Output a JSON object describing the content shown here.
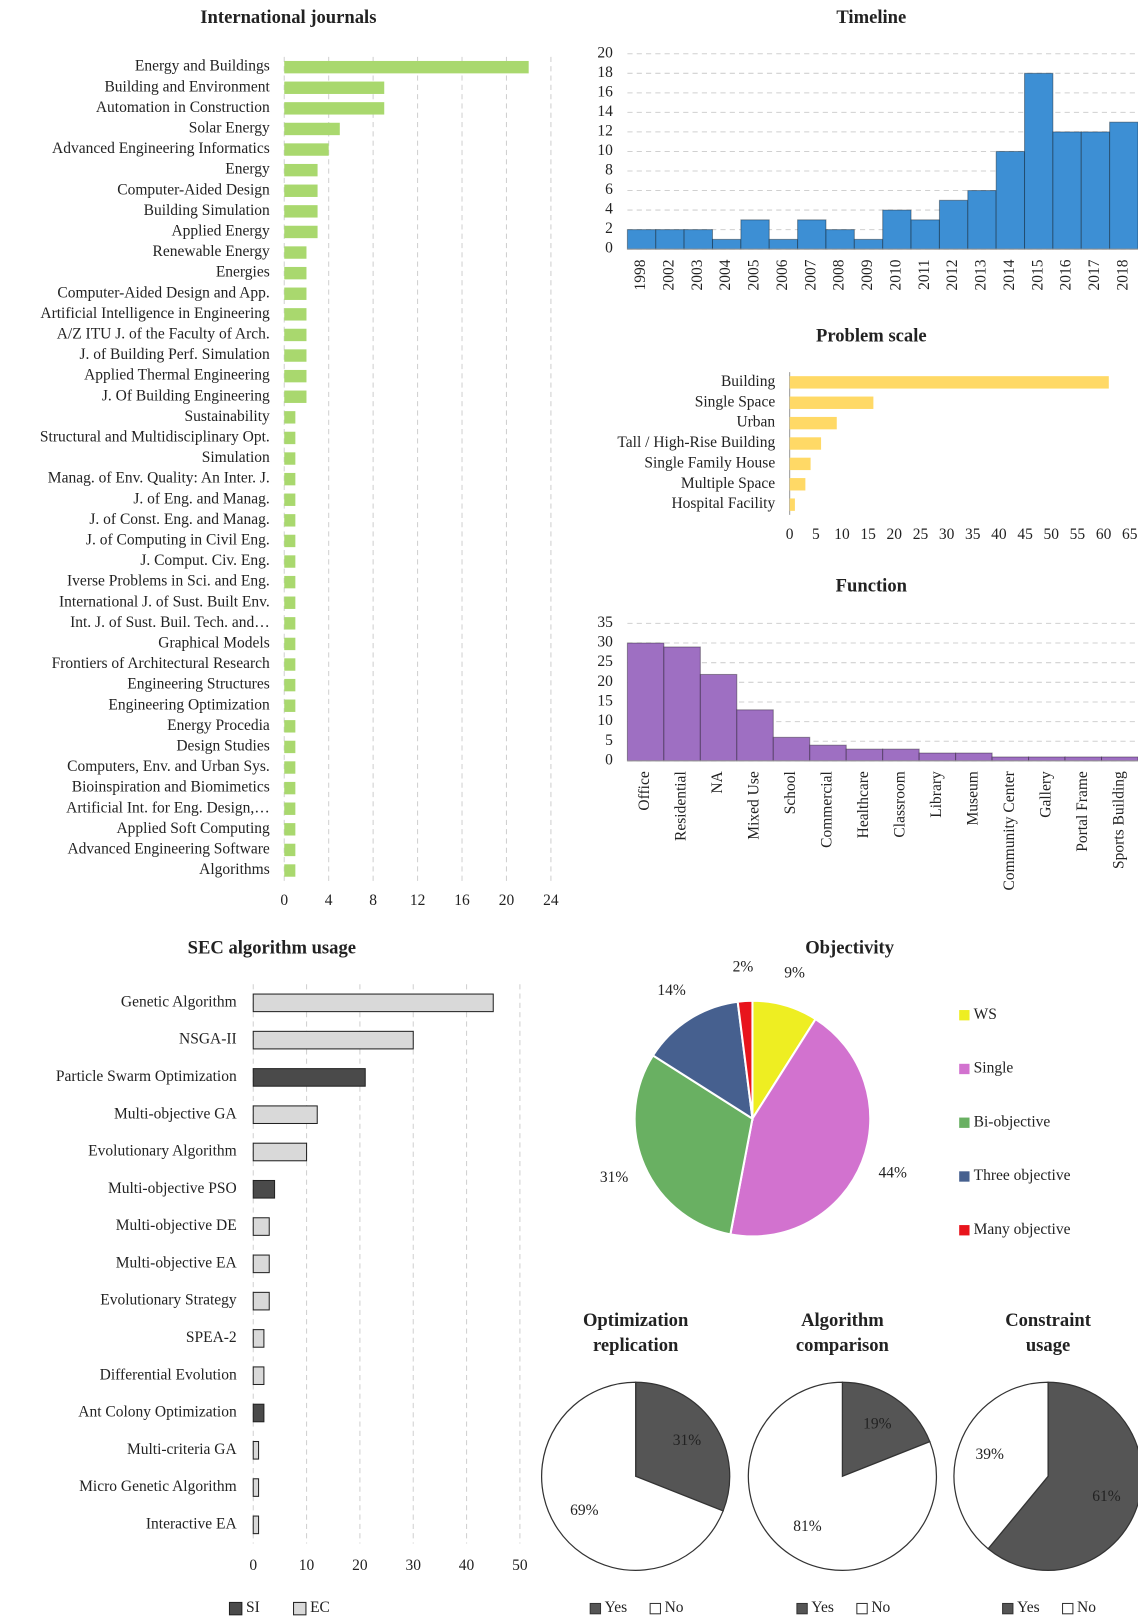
{
  "chart_data": [
    {
      "type": "hbar",
      "title": "International journals",
      "color": "#a9d86e",
      "grid": true,
      "categories": [
        "Energy and Buildings",
        "Building and Environment",
        "Automation in Construction",
        "Solar Energy",
        "Advanced Engineering Informatics",
        "Energy",
        "Computer-Aided Design",
        "Building Simulation",
        "Applied Energy",
        "Renewable Energy",
        "Energies",
        "Computer-Aided Design and App.",
        "Artificial Intelligence in Engineering",
        "A/Z ITU J. of the Faculty of Arch.",
        "J. of Building Perf. Simulation",
        "Applied Thermal Engineering",
        "J. Of Building Engineering",
        "Sustainability",
        "Structural and Multidisciplinary Opt.",
        "Simulation",
        "Manag. of Env. Quality: An Inter. J.",
        "J. of Eng. and Manag.",
        "J. of Const. Eng. and Manag.",
        "J. of Computing in Civil Eng.",
        "J. Comput. Civ. Eng.",
        "Iverse Problems in Sci. and Eng.",
        "International J. of Sust. Built Env.",
        "Int. J. of Sust. Buil. Tech. and…",
        "Graphical Models",
        "Frontiers of Architectural Research",
        "Engineering Structures",
        "Engineering Optimization",
        "Energy Procedia",
        "Design Studies",
        "Computers, Env. and Urban Sys.",
        "Bioinspiration and Biomimetics",
        "Artificial Int. for Eng. Design,…",
        "Applied Soft Computing",
        "Advanced Engineering Software",
        "Algorithms"
      ],
      "values": [
        22,
        9,
        9,
        5,
        4,
        3,
        3,
        3,
        3,
        2,
        2,
        2,
        2,
        2,
        2,
        2,
        2,
        1,
        1,
        1,
        1,
        1,
        1,
        1,
        1,
        1,
        1,
        1,
        1,
        1,
        1,
        1,
        1,
        1,
        1,
        1,
        1,
        1,
        1,
        1
      ],
      "xlim": [
        0,
        24
      ],
      "xticks": [
        0,
        4,
        8,
        12,
        16,
        20,
        24
      ]
    },
    {
      "type": "vbar",
      "title": "Timeline",
      "color": "#3d8fd4",
      "grid": true,
      "categories": [
        "1998",
        "2002",
        "2003",
        "2004",
        "2005",
        "2006",
        "2007",
        "2008",
        "2009",
        "2010",
        "2011",
        "2012",
        "2013",
        "2014",
        "2015",
        "2016",
        "2017",
        "2018"
      ],
      "values": [
        2,
        2,
        2,
        1,
        3,
        1,
        3,
        2,
        1,
        4,
        3,
        5,
        6,
        10,
        18,
        12,
        12,
        13
      ],
      "ylim": [
        0,
        20
      ],
      "yticks": [
        0,
        2,
        4,
        6,
        8,
        10,
        12,
        14,
        16,
        18,
        20
      ]
    },
    {
      "type": "hbar",
      "title": "Problem scale",
      "color": "#ffd966",
      "grid": false,
      "categories": [
        "Building",
        "Single Space",
        "Urban",
        "Tall / High-Rise Building",
        "Single Family House",
        "Multiple Space",
        "Hospital Facility"
      ],
      "values": [
        61,
        16,
        9,
        6,
        4,
        3,
        1
      ],
      "xlim": [
        0,
        65
      ],
      "xticks": [
        0,
        5,
        10,
        15,
        20,
        25,
        30,
        35,
        40,
        45,
        50,
        55,
        60,
        65
      ]
    },
    {
      "type": "vbar",
      "title": "Function",
      "color": "#9e6fc2",
      "grid": true,
      "categories": [
        "Office",
        "Residential",
        "NA",
        "Mixed Use",
        "School",
        "Commercial",
        "Healthcare",
        "Classroom",
        "Library",
        "Museum",
        "Community Center",
        "Gallery",
        "Portal Frame",
        "Sports Building"
      ],
      "values": [
        30,
        29,
        22,
        13,
        6,
        4,
        3,
        3,
        2,
        2,
        1,
        1,
        1,
        1
      ],
      "ylim": [
        0,
        35
      ],
      "yticks": [
        0,
        5,
        10,
        15,
        20,
        25,
        30,
        35
      ]
    },
    {
      "type": "hbar",
      "title": "SEC algorithm usage",
      "grid": true,
      "categories": [
        "Genetic Algorithm",
        "NSGA-II",
        "Particle Swarm Optimization",
        "Multi-objective GA",
        "Evolutionary Algorithm",
        "Multi-objective PSO",
        "Multi-objective DE",
        "Multi-objective EA",
        "Evolutionary Strategy",
        "SPEA-2",
        "Differential Evolution",
        "Ant Colony Optimization",
        "Multi-criteria GA",
        "Micro Genetic Algorithm",
        "Interactive EA"
      ],
      "series": [
        {
          "name": "SI",
          "color": "#4a4a4a",
          "values": [
            null,
            null,
            21,
            null,
            null,
            4,
            null,
            null,
            null,
            null,
            null,
            2,
            null,
            null,
            null
          ]
        },
        {
          "name": "EC",
          "color": "#d9d9d9",
          "values": [
            45,
            30,
            null,
            12,
            10,
            null,
            3,
            3,
            3,
            2,
            2,
            null,
            1,
            1,
            1
          ]
        }
      ],
      "xlim": [
        0,
        50
      ],
      "xticks": [
        0,
        10,
        20,
        30,
        40,
        50
      ]
    },
    {
      "type": "pie",
      "title": "Objectivity",
      "categories": [
        "WS",
        "Single",
        "Bi-objective",
        "Three objective",
        "Many objective"
      ],
      "values": [
        9,
        44,
        31,
        14,
        2
      ],
      "value_labels": [
        "9%",
        "44%",
        "31%",
        "14%",
        "2%"
      ],
      "colors": [
        "#eeee22",
        "#d272cf",
        "#69b062",
        "#46608f",
        "#e8141c"
      ]
    },
    {
      "type": "pie",
      "title": "Optimization replication",
      "categories": [
        "Yes",
        "No"
      ],
      "values": [
        31,
        69
      ],
      "value_labels": [
        "31%",
        "69%"
      ],
      "colors": [
        "#555555",
        "#ffffff"
      ]
    },
    {
      "type": "pie",
      "title": "Algorithm comparison",
      "categories": [
        "Yes",
        "No"
      ],
      "values": [
        19,
        81
      ],
      "value_labels": [
        "19%",
        "81%"
      ],
      "colors": [
        "#555555",
        "#ffffff"
      ]
    },
    {
      "type": "pie",
      "title": "Constraint usage",
      "categories": [
        "Yes",
        "No"
      ],
      "values": [
        61,
        39
      ],
      "value_labels": [
        "61%",
        "39%"
      ],
      "colors": [
        "#555555",
        "#ffffff"
      ]
    }
  ]
}
